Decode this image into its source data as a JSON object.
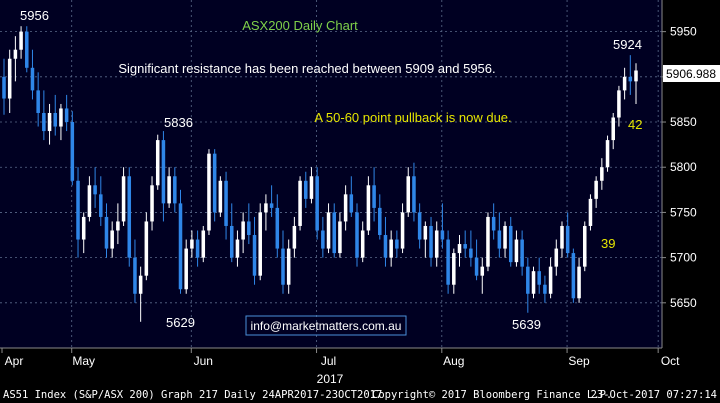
{
  "chart_data": {
    "type": "candlestick",
    "title": "ASX200 Daily Chart",
    "year_label": "2017",
    "annotations": {
      "resistance": "Significant resistance has been reached between 5909 and 5956.",
      "pullback": "A 50-60 point pullback is now due.",
      "email": "info@marketmatters.com.au"
    },
    "point_labels": [
      {
        "text": "5956",
        "color": "#ffffff"
      },
      {
        "text": "5836",
        "color": "#ffffff"
      },
      {
        "text": "5629",
        "color": "#ffffff"
      },
      {
        "text": "5639",
        "color": "#ffffff"
      },
      {
        "text": "5924",
        "color": "#ffffff"
      },
      {
        "text": "39",
        "color": "#e6e600"
      },
      {
        "text": "42",
        "color": "#e6e600"
      }
    ],
    "last_price": "5906.988",
    "ylim": [
      5600,
      5985
    ],
    "y_ticks": [
      "5950",
      "5900",
      "5850",
      "5800",
      "5750",
      "5700",
      "5650"
    ],
    "x_ticks": [
      "Apr",
      "May",
      "Jun",
      "Jul",
      "Aug",
      "Sep",
      "Oct"
    ],
    "colors": {
      "background": "#000022",
      "up": "#ffffff",
      "down": "#2f86e8",
      "grid": "#5a6a8a",
      "title": "#7fd04a",
      "pullback": "#e6e600",
      "email_border": "#4a90d9"
    },
    "candles": [
      [
        5900,
        5920,
        5858,
        5876
      ],
      [
        5876,
        5930,
        5860,
        5920
      ],
      [
        5920,
        5945,
        5895,
        5930
      ],
      [
        5930,
        5956,
        5920,
        5950
      ],
      [
        5950,
        5956,
        5905,
        5910
      ],
      [
        5910,
        5930,
        5875,
        5885
      ],
      [
        5885,
        5905,
        5845,
        5860
      ],
      [
        5860,
        5885,
        5830,
        5840
      ],
      [
        5840,
        5870,
        5825,
        5860
      ],
      [
        5860,
        5880,
        5835,
        5845
      ],
      [
        5845,
        5870,
        5830,
        5865
      ],
      [
        5865,
        5880,
        5840,
        5850
      ],
      [
        5850,
        5862,
        5780,
        5785
      ],
      [
        5785,
        5800,
        5700,
        5720
      ],
      [
        5720,
        5750,
        5705,
        5745
      ],
      [
        5745,
        5790,
        5740,
        5780
      ],
      [
        5780,
        5800,
        5755,
        5770
      ],
      [
        5770,
        5790,
        5735,
        5745
      ],
      [
        5745,
        5760,
        5700,
        5710
      ],
      [
        5710,
        5740,
        5700,
        5730
      ],
      [
        5730,
        5760,
        5715,
        5740
      ],
      [
        5740,
        5800,
        5735,
        5790
      ],
      [
        5790,
        5800,
        5690,
        5700
      ],
      [
        5700,
        5720,
        5650,
        5660
      ],
      [
        5660,
        5690,
        5629,
        5680
      ],
      [
        5680,
        5750,
        5675,
        5740
      ],
      [
        5740,
        5790,
        5730,
        5780
      ],
      [
        5780,
        5836,
        5775,
        5830
      ],
      [
        5830,
        5840,
        5740,
        5760
      ],
      [
        5760,
        5800,
        5755,
        5790
      ],
      [
        5790,
        5800,
        5750,
        5760
      ],
      [
        5760,
        5775,
        5660,
        5665
      ],
      [
        5665,
        5720,
        5660,
        5710
      ],
      [
        5710,
        5730,
        5700,
        5720
      ],
      [
        5720,
        5730,
        5690,
        5700
      ],
      [
        5700,
        5735,
        5695,
        5730
      ],
      [
        5730,
        5820,
        5725,
        5815
      ],
      [
        5815,
        5820,
        5740,
        5750
      ],
      [
        5750,
        5790,
        5745,
        5785
      ],
      [
        5785,
        5795,
        5720,
        5735
      ],
      [
        5735,
        5760,
        5695,
        5700
      ],
      [
        5700,
        5730,
        5690,
        5720
      ],
      [
        5720,
        5750,
        5705,
        5740
      ],
      [
        5740,
        5760,
        5715,
        5725
      ],
      [
        5725,
        5745,
        5670,
        5680
      ],
      [
        5680,
        5760,
        5675,
        5750
      ],
      [
        5750,
        5770,
        5730,
        5760
      ],
      [
        5760,
        5780,
        5745,
        5755
      ],
      [
        5755,
        5770,
        5700,
        5710
      ],
      [
        5710,
        5730,
        5660,
        5670
      ],
      [
        5670,
        5720,
        5660,
        5710
      ],
      [
        5710,
        5745,
        5700,
        5735
      ],
      [
        5735,
        5790,
        5730,
        5785
      ],
      [
        5785,
        5795,
        5755,
        5765
      ],
      [
        5765,
        5800,
        5760,
        5790
      ],
      [
        5790,
        5800,
        5720,
        5730
      ],
      [
        5730,
        5745,
        5700,
        5710
      ],
      [
        5710,
        5760,
        5705,
        5750
      ],
      [
        5750,
        5760,
        5700,
        5705
      ],
      [
        5705,
        5750,
        5700,
        5740
      ],
      [
        5740,
        5780,
        5730,
        5770
      ],
      [
        5770,
        5790,
        5745,
        5750
      ],
      [
        5750,
        5760,
        5690,
        5700
      ],
      [
        5700,
        5740,
        5695,
        5730
      ],
      [
        5730,
        5790,
        5725,
        5780
      ],
      [
        5780,
        5800,
        5740,
        5755
      ],
      [
        5755,
        5770,
        5720,
        5725
      ],
      [
        5725,
        5745,
        5690,
        5700
      ],
      [
        5700,
        5730,
        5690,
        5720
      ],
      [
        5720,
        5730,
        5700,
        5710
      ],
      [
        5710,
        5760,
        5705,
        5750
      ],
      [
        5750,
        5800,
        5745,
        5790
      ],
      [
        5790,
        5805,
        5740,
        5750
      ],
      [
        5750,
        5760,
        5710,
        5720
      ],
      [
        5720,
        5740,
        5700,
        5735
      ],
      [
        5735,
        5745,
        5690,
        5700
      ],
      [
        5700,
        5740,
        5690,
        5730
      ],
      [
        5730,
        5760,
        5710,
        5720
      ],
      [
        5720,
        5730,
        5660,
        5670
      ],
      [
        5670,
        5710,
        5660,
        5705
      ],
      [
        5705,
        5725,
        5690,
        5715
      ],
      [
        5715,
        5730,
        5700,
        5710
      ],
      [
        5710,
        5730,
        5690,
        5700
      ],
      [
        5700,
        5720,
        5675,
        5680
      ],
      [
        5680,
        5700,
        5660,
        5690
      ],
      [
        5690,
        5750,
        5685,
        5745
      ],
      [
        5745,
        5760,
        5720,
        5730
      ],
      [
        5730,
        5750,
        5700,
        5710
      ],
      [
        5710,
        5740,
        5700,
        5735
      ],
      [
        5735,
        5745,
        5690,
        5695
      ],
      [
        5695,
        5730,
        5690,
        5720
      ],
      [
        5720,
        5730,
        5680,
        5690
      ],
      [
        5690,
        5700,
        5639,
        5660
      ],
      [
        5660,
        5690,
        5655,
        5685
      ],
      [
        5685,
        5700,
        5660,
        5670
      ],
      [
        5670,
        5680,
        5650,
        5660
      ],
      [
        5660,
        5700,
        5655,
        5690
      ],
      [
        5690,
        5720,
        5680,
        5710
      ],
      [
        5710,
        5740,
        5700,
        5735
      ],
      [
        5735,
        5750,
        5700,
        5705
      ],
      [
        5705,
        5710,
        5650,
        5655
      ],
      [
        5655,
        5700,
        5650,
        5690
      ],
      [
        5690,
        5740,
        5685,
        5735
      ],
      [
        5735,
        5770,
        5730,
        5765
      ],
      [
        5765,
        5790,
        5755,
        5785
      ],
      [
        5785,
        5810,
        5775,
        5800
      ],
      [
        5800,
        5835,
        5795,
        5830
      ],
      [
        5830,
        5860,
        5820,
        5855
      ],
      [
        5855,
        5890,
        5845,
        5885
      ],
      [
        5885,
        5910,
        5875,
        5900
      ],
      [
        5900,
        5924,
        5880,
        5895
      ],
      [
        5895,
        5915,
        5870,
        5907
      ]
    ]
  }
}
